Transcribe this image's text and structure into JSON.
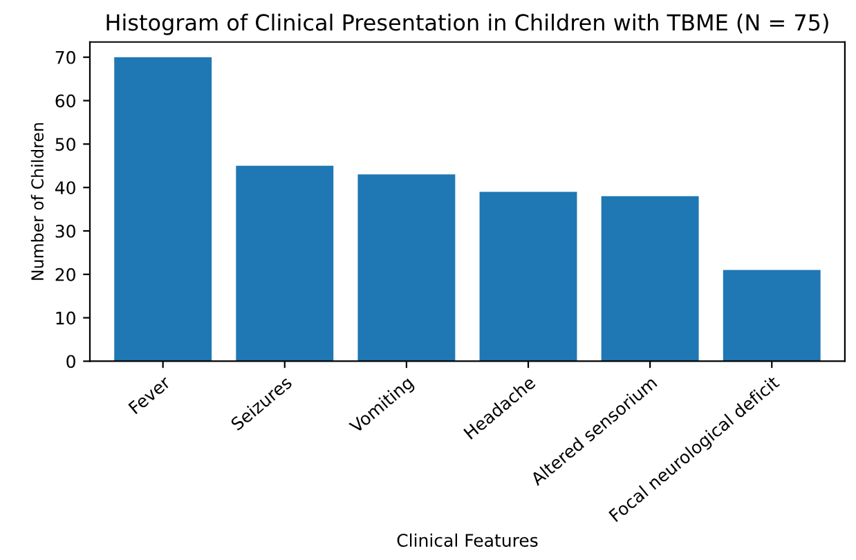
{
  "chart_data": {
    "type": "bar",
    "title": "Histogram of Clinical Presentation in Children with TBME (N = 75)",
    "xlabel": "Clinical Features",
    "ylabel": "Number of Children",
    "categories": [
      "Fever",
      "Seizures",
      "Vomiting",
      "Headache",
      "Altered sensorium",
      "Focal neurological deficit"
    ],
    "values": [
      70,
      45,
      43,
      39,
      38,
      21
    ],
    "color": "#1f77b4",
    "ylim": [
      0,
      73.5
    ],
    "yticks": [
      0,
      10,
      20,
      30,
      40,
      50,
      60,
      70
    ],
    "grid": false,
    "legend": false
  }
}
